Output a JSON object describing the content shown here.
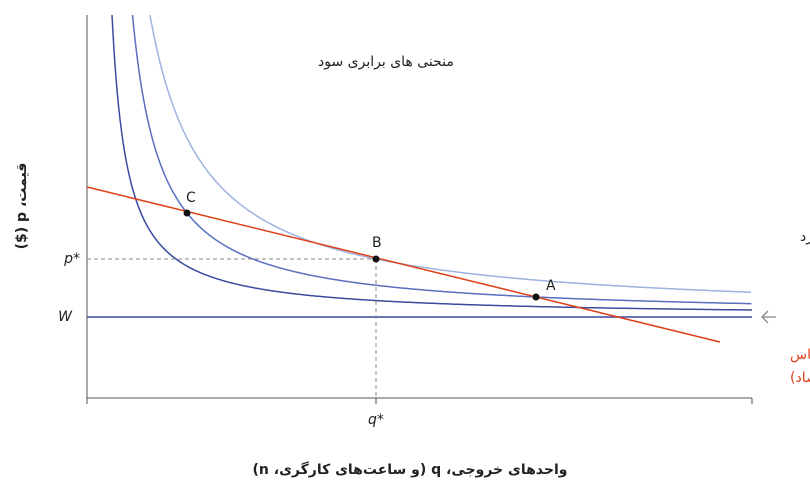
{
  "axes": {
    "y_label": "قیمت، p ($)",
    "x_label": "واحدهای خروجی، q (و ساعت‌های کارگری، n)",
    "y_ticks": [
      "p*",
      "W"
    ],
    "x_ticks": [
      "q*"
    ]
  },
  "labels": {
    "isoprofit": "منحنی های برابری سود",
    "wage": "دستمزد",
    "demand": [
      "منحنی تقاضا (بر اساس",
      "تقاضا در کل اقتصاد)"
    ]
  },
  "points": [
    "A",
    "B",
    "C"
  ]
}
